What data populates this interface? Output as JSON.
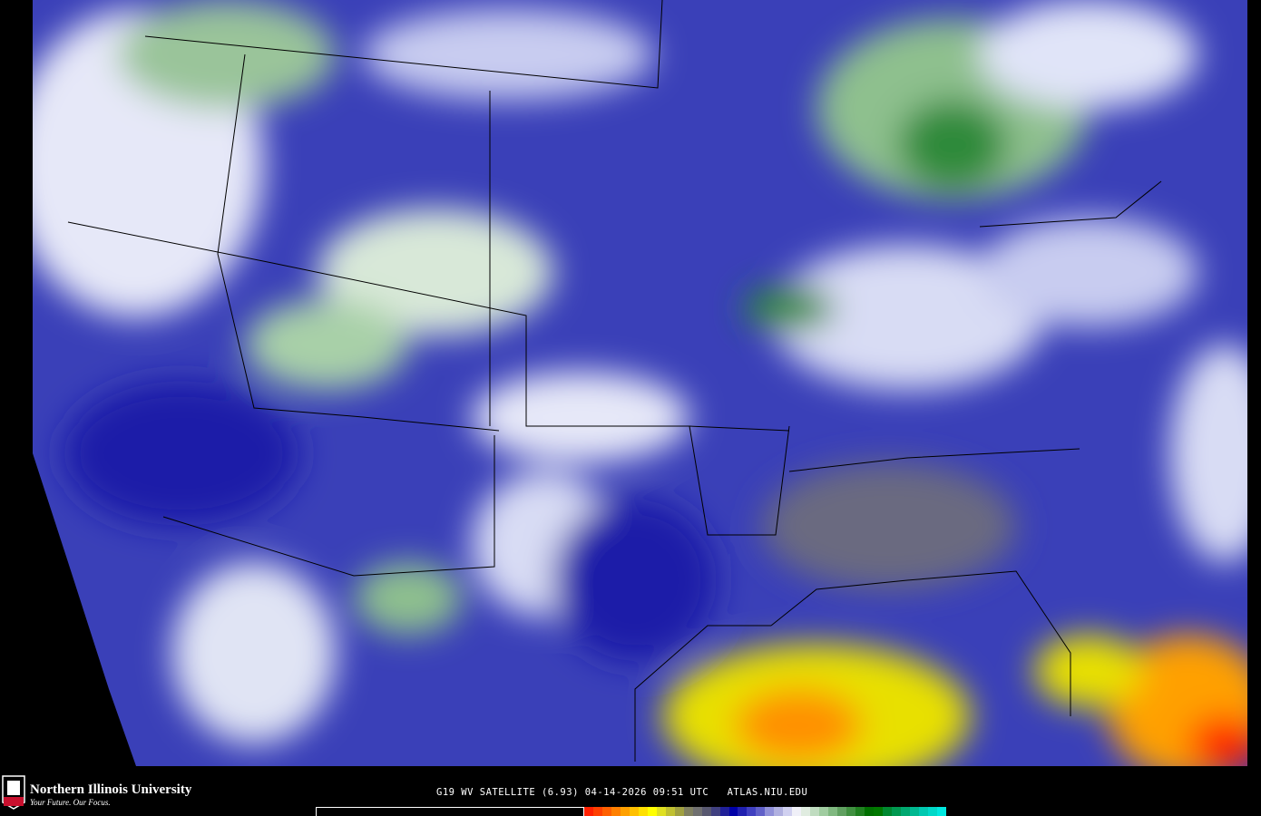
{
  "map": {
    "title_text": "G19 WV SATELLITE (6.93) 04-14-2026 09:51 UTC",
    "source": "ATLAS.NIU.EDU",
    "colors": {
      "background": "#000000",
      "dry_blue": "#1a1fa8",
      "mid_blue": "#5a60c8",
      "moist_light": "#d8dcf2",
      "moist_green": "#2e8a3a",
      "very_dry_yellow": "#e8e000",
      "very_dry_red": "#ff2000"
    }
  },
  "footer": {
    "logo_text": "NIU",
    "university_name": "Northern Illinois University",
    "tagline": "Your Future. Our Focus.",
    "caption": "G19 WV SATELLITE (6.93) 04-14-2026 09:51 UTC   ATLAS.NIU.EDU"
  },
  "colorbar": {
    "colors": [
      "#ff2000",
      "#ff4000",
      "#ff6000",
      "#ff8000",
      "#ffa000",
      "#ffc000",
      "#ffe000",
      "#ffff00",
      "#e0e020",
      "#c0c030",
      "#a0a040",
      "#808060",
      "#707070",
      "#585870",
      "#404080",
      "#202098",
      "#0000a8",
      "#2020b0",
      "#4040c0",
      "#6060c8",
      "#9090d8",
      "#b0b0e0",
      "#d0d0f0",
      "#f0f0f8",
      "#e0ece0",
      "#c0dcc0",
      "#a0cca0",
      "#80b880",
      "#60a060",
      "#409040",
      "#208020",
      "#007000",
      "#007800",
      "#008830",
      "#009850",
      "#00a870",
      "#00b890",
      "#00c8b0",
      "#00d8c8",
      "#00e8e0"
    ]
  }
}
